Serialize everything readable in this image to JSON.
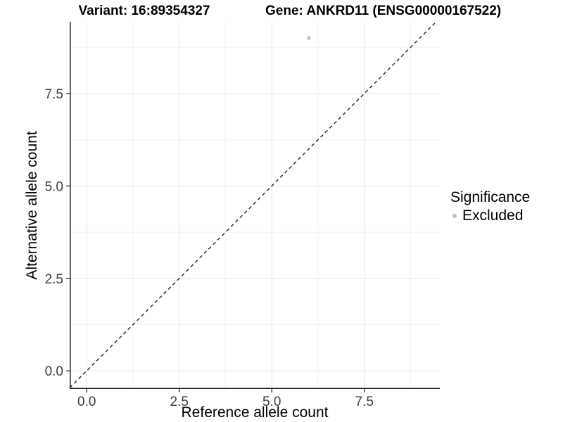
{
  "chart_data": {
    "type": "scatter",
    "titles": {
      "left": "Variant: 16:89354327",
      "right": "Gene: ANKRD11 (ENSG00000167522)"
    },
    "xlabel": "Reference allele count",
    "ylabel": "Alternative allele count",
    "xlim": [
      -0.46,
      9.54
    ],
    "ylim": [
      -0.49,
      9.44
    ],
    "x_ticks": {
      "values": [
        0,
        2.5,
        5,
        7.5
      ],
      "labels": [
        "0.0",
        "2.5",
        "5.0",
        "7.5"
      ]
    },
    "y_ticks": {
      "values": [
        0,
        2.5,
        5,
        7.5
      ],
      "labels": [
        "0.0",
        "2.5",
        "5.0",
        "7.5"
      ]
    },
    "x_minor": [
      1.25,
      3.75,
      6.25,
      8.75
    ],
    "y_minor": [
      1.25,
      3.75,
      6.25,
      8.75
    ],
    "grid": "major+minor",
    "series": [
      {
        "name": "Excluded",
        "color": "#bebebe",
        "points": [
          {
            "x": 6,
            "y": 9
          }
        ]
      }
    ],
    "reference_line": {
      "kind": "identity",
      "equation": "y = x",
      "style": "dashed",
      "color": "#222222"
    },
    "legend": {
      "title": "Significance",
      "position": "right",
      "items": [
        {
          "label": "Excluded",
          "color": "#bebebe",
          "marker": "circle"
        }
      ]
    },
    "style": {
      "background": "#ffffff",
      "grid_major_color": "#e8e8e8",
      "grid_minor_color": "#f3f3f3",
      "axis_line_color": "#1f1f1f",
      "tick_mark_color": "#333333",
      "tick_label_color": "#3d3d3d",
      "point_radius_px": 2.6
    }
  }
}
